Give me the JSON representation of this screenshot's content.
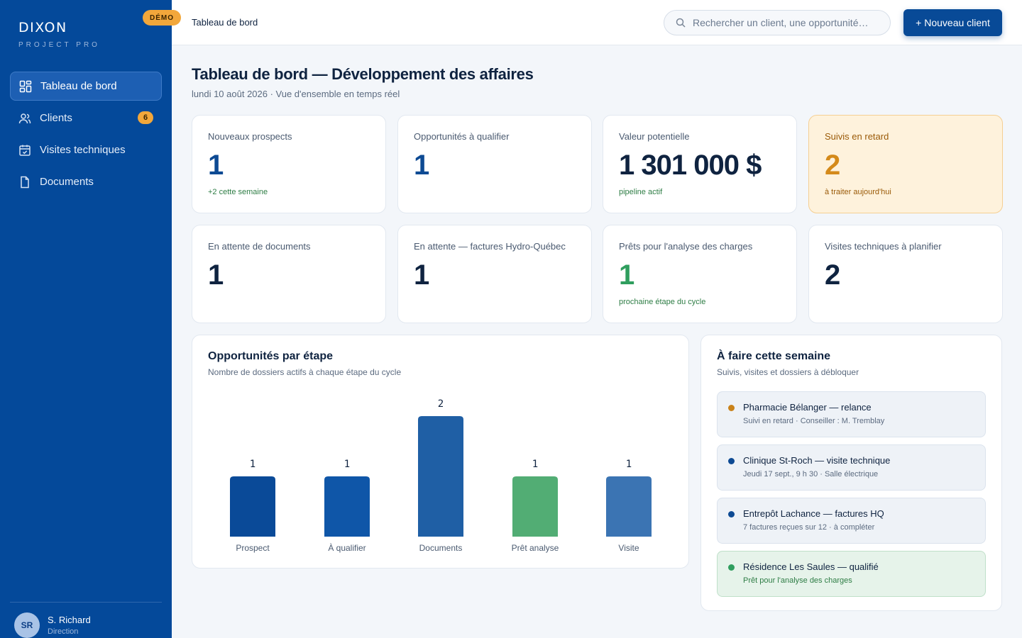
{
  "app": {
    "brand_name": "DIXON",
    "brand_sub": "PROJECT PRO",
    "demo_badge": "DÉMO"
  },
  "sidebar": {
    "items": [
      {
        "label": "Tableau de bord",
        "icon": "dashboard-icon",
        "active": true
      },
      {
        "label": "Clients",
        "icon": "users-icon",
        "badge": "6"
      },
      {
        "label": "Visites techniques",
        "icon": "calendar-check-icon"
      },
      {
        "label": "Documents",
        "icon": "document-icon"
      }
    ],
    "user": {
      "initials": "SR",
      "name": "S. Richard",
      "role": "Direction"
    }
  },
  "topbar": {
    "breadcrumb": "Tableau de bord",
    "search_placeholder": "Rechercher un client, une opportunité…",
    "new_client_label": "+ Nouveau client"
  },
  "page": {
    "title": "Tableau de bord — Développement des affaires",
    "subtitle": "lundi 10 août 2026 · Vue d'ensemble en temps réel"
  },
  "stats": [
    {
      "label": "Nouveaux prospects",
      "value": "1",
      "note": "+2 cette semaine"
    },
    {
      "label": "Opportunités à qualifier",
      "value": "1",
      "note": ""
    },
    {
      "label": "Valeur potentielle",
      "value": "1 301 000 $",
      "note": "pipeline actif"
    },
    {
      "label": "Suivis en retard",
      "value": "2",
      "note": "à traiter aujourd'hui"
    },
    {
      "label": "En attente de documents",
      "value": "1",
      "note": ""
    },
    {
      "label": "En attente — factures Hydro-Québec",
      "value": "1",
      "note": ""
    },
    {
      "label": "Prêts pour l'analyse des charges",
      "value": "1",
      "note": "prochaine étape du cycle"
    },
    {
      "label": "Visites techniques à planifier",
      "value": "2",
      "note": ""
    }
  ],
  "chart": {
    "title": "Opportunités par étape",
    "subtitle": "Nombre de dossiers actifs à chaque étape du cycle"
  },
  "chart_data": {
    "type": "bar",
    "title": "Opportunités par étape",
    "subtitle": "Nombre de dossiers actifs à chaque étape du cycle",
    "categories": [
      "Prospect",
      "À qualifier",
      "Documents",
      "Prêt analyse",
      "Visite"
    ],
    "values": [
      1,
      1,
      2,
      1,
      1
    ],
    "colors": [
      "#0a4a98",
      "#0f56a8",
      "#1f5fa5",
      "#52ad74",
      "#3b74b3"
    ],
    "ylim": [
      0,
      2
    ],
    "grid": false,
    "xlabel": "",
    "ylabel": ""
  },
  "todo": {
    "title": "À faire cette semaine",
    "subtitle": "Suivis, visites et dossiers à débloquer",
    "items": [
      {
        "title": "Pharmacie Bélanger — relance",
        "detail": "Suivi en retard · Conseiller : M. Tremblay",
        "dot_color": "#c9821a"
      },
      {
        "title": "Clinique St-Roch — visite technique",
        "detail": "Jeudi 17 sept., 9 h 30 · Salle électrique",
        "dot_color": "#0d4a93"
      },
      {
        "title": "Entrepôt Lachance — factures HQ",
        "detail": "7 factures reçues sur 12 · à compléter",
        "dot_color": "#0d4a93"
      },
      {
        "title": "Résidence Les Saules — qualifié",
        "detail": "Prêt pour l'analyse des charges",
        "dot_color": "#2f9e5e"
      }
    ]
  }
}
